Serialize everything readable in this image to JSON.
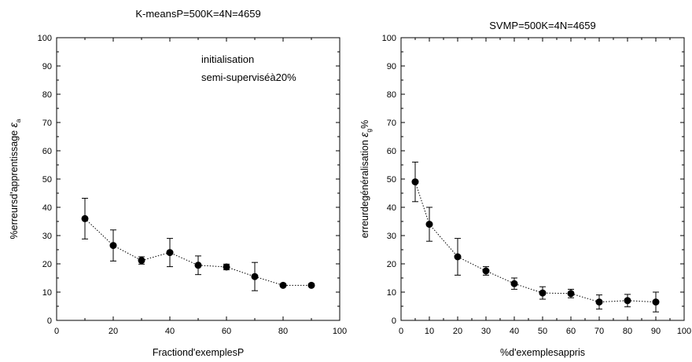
{
  "chart_data": [
    {
      "type": "scatter",
      "title": "K-meansP=500K=4N=4659",
      "xlabel": "Fractiond'exemplesP",
      "ylabel": "%erreursd'apprentissage",
      "ylabel_symbol": "ε",
      "ylabel_subscript": "a",
      "annotations": [
        "initialisation",
        "semi-superviséà20%"
      ],
      "xlim": [
        0,
        100
      ],
      "ylim": [
        0,
        100
      ],
      "xticks": [
        0,
        20,
        40,
        60,
        80,
        100
      ],
      "yticks": [
        0,
        10,
        20,
        30,
        40,
        50,
        60,
        70,
        80,
        90,
        100
      ],
      "line_style": "dotted",
      "marker": "filled-circle",
      "color": "#000000",
      "series": [
        {
          "x": [
            10,
            20,
            30,
            40,
            50,
            60,
            70,
            80,
            90
          ],
          "y": [
            36,
            26.5,
            21.2,
            24,
            19.5,
            18.9,
            15.5,
            12.4,
            12.4
          ],
          "err": [
            7.2,
            5.5,
            1.3,
            5,
            3.3,
            1,
            5,
            0,
            0
          ]
        }
      ]
    },
    {
      "type": "scatter",
      "title": "SVMP=500K=4N=4659",
      "xlabel": "%d'exemplesappris",
      "ylabel": "erreurdegénéralisation",
      "ylabel_symbol": "ε",
      "ylabel_subscript": "g",
      "ylabel_suffix": "%",
      "annotations": [],
      "xlim": [
        0,
        100
      ],
      "ylim": [
        0,
        100
      ],
      "xticks": [
        0,
        10,
        20,
        30,
        40,
        50,
        60,
        70,
        80,
        90,
        100
      ],
      "yticks": [
        0,
        10,
        20,
        30,
        40,
        50,
        60,
        70,
        80,
        90,
        100
      ],
      "line_style": "dotted",
      "marker": "filled-circle",
      "color": "#000000",
      "series": [
        {
          "x": [
            5,
            10,
            20,
            30,
            40,
            50,
            60,
            70,
            80,
            90
          ],
          "y": [
            49,
            34,
            22.5,
            17.5,
            13,
            9.7,
            9.5,
            6.5,
            7,
            6.5
          ],
          "err": [
            7,
            6,
            6.5,
            1.5,
            2,
            2.2,
            1.5,
            2.5,
            2.2,
            3.5
          ]
        }
      ]
    }
  ]
}
